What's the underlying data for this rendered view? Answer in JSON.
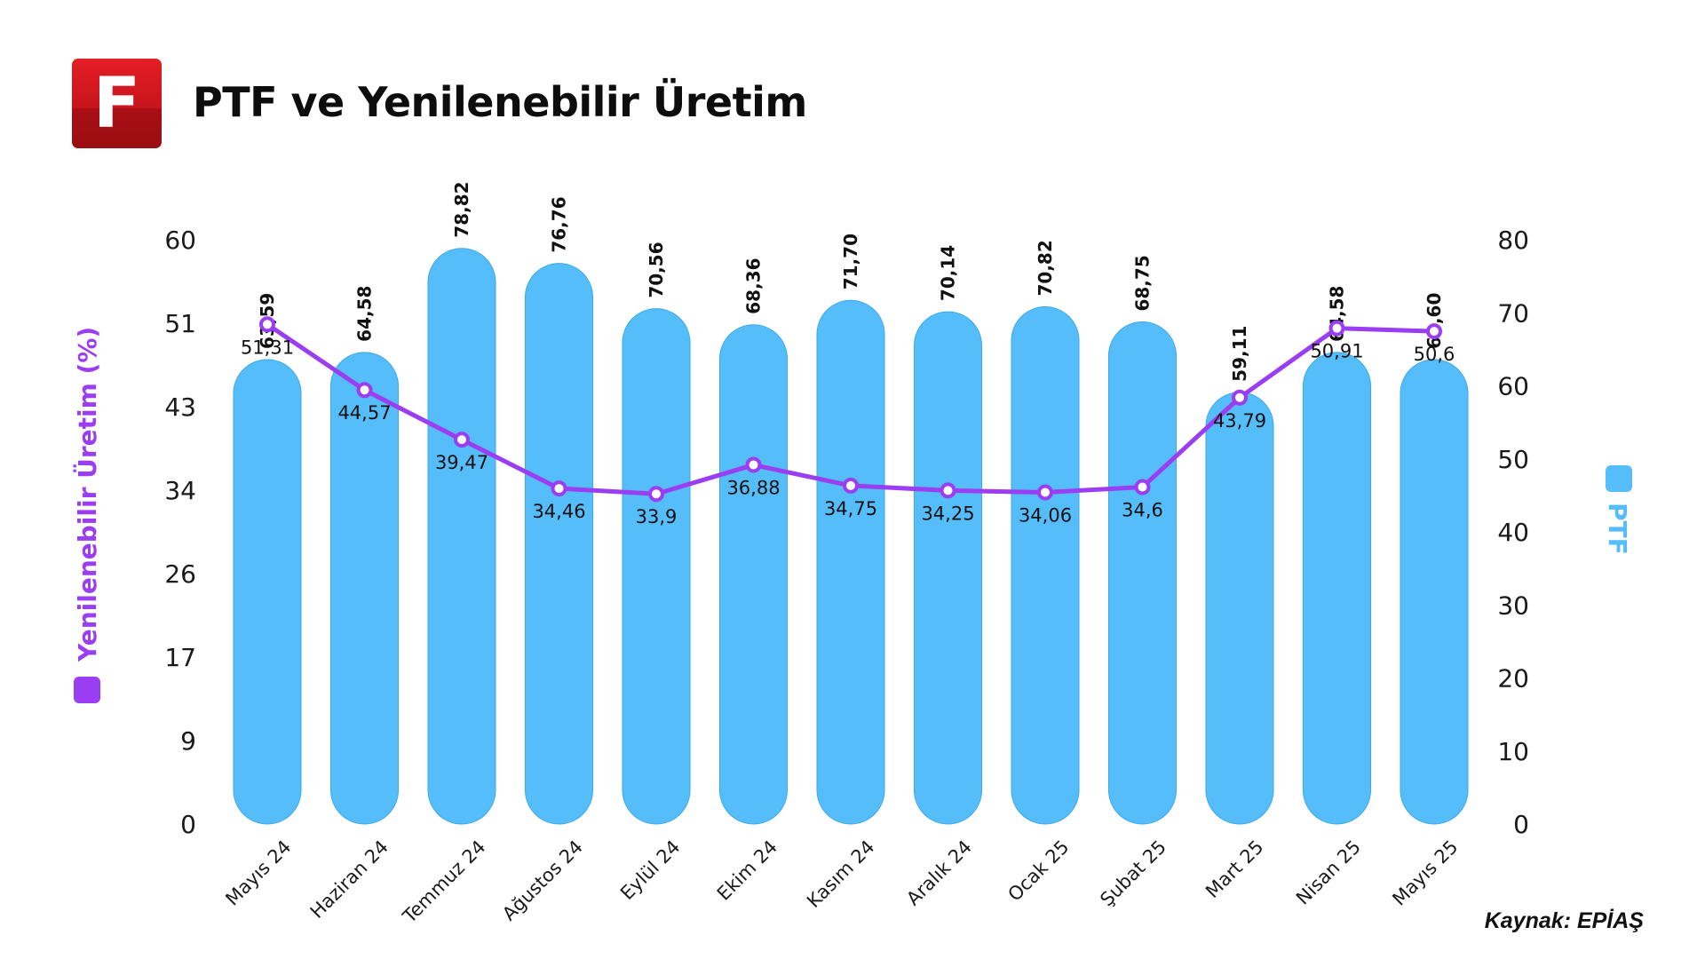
{
  "header": {
    "logo_letter": "F",
    "title": "PTF ve Yenilenebilir Üretim"
  },
  "source": "Kaynak: EPİAŞ",
  "colors": {
    "bar": "#56bdfb",
    "line": "#9b3df2",
    "logo": "#c8141c"
  },
  "chart_data": {
    "type": "bar",
    "title": "PTF ve Yenilenebilir Üretim",
    "categories": [
      "Mayıs 24",
      "Haziran 24",
      "Temmuz 24",
      "Ağustos 24",
      "Eylül 24",
      "Ekim 24",
      "Kasım 24",
      "Aralık 24",
      "Ocak 25",
      "Şubat 25",
      "Mart 25",
      "Nisan 25",
      "Mayıs 25"
    ],
    "series": [
      {
        "name": "PTF",
        "type": "bar",
        "axis": "right",
        "values": [
          63.59,
          64.58,
          78.82,
          76.76,
          70.56,
          68.36,
          71.7,
          70.14,
          70.82,
          68.75,
          59.11,
          64.58,
          63.6
        ],
        "labels": [
          "63,59",
          "64,58",
          "78,82",
          "76,76",
          "70,56",
          "68,36",
          "71,70",
          "70,14",
          "70,82",
          "68,75",
          "59,11",
          "64,58",
          "63,60"
        ]
      },
      {
        "name": "Yenilenebilir Üretim (%)",
        "type": "line",
        "axis": "left",
        "values": [
          51.31,
          44.57,
          39.47,
          34.46,
          33.9,
          36.88,
          34.75,
          34.25,
          34.06,
          34.6,
          43.79,
          50.91,
          50.6
        ],
        "labels": [
          "51,31",
          "44,57",
          "39,47",
          "34,46",
          "33,9",
          "36,88",
          "34,75",
          "34,25",
          "34,06",
          "34,6",
          "43,79",
          "50,91",
          "50,6"
        ]
      }
    ],
    "y_left": {
      "label": "Yenilenebilir Üretim (%)",
      "ticks": [
        "0",
        "9",
        "17",
        "26",
        "34",
        "43",
        "51",
        "60"
      ],
      "range": [
        0,
        60
      ]
    },
    "y_right": {
      "label": "PTF",
      "ticks": [
        "0",
        "10",
        "20",
        "30",
        "40",
        "50",
        "60",
        "70",
        "80"
      ],
      "range": [
        0,
        80
      ]
    },
    "grid": false,
    "legend": "axis titles (left: Yenilenebilir Üretim (%), right: PTF)"
  }
}
